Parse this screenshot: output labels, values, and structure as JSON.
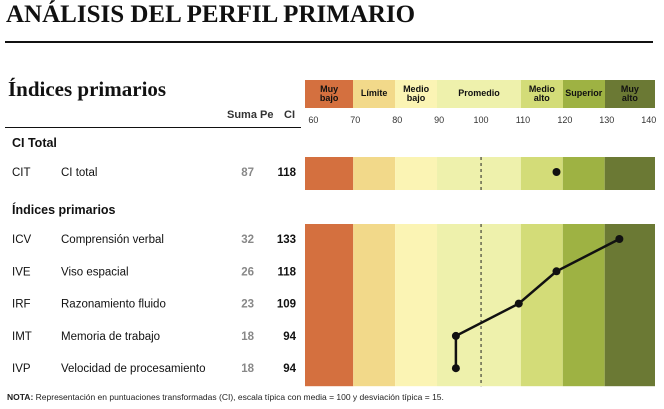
{
  "title": "ANÁLISIS DEL PERFIL PRIMARIO",
  "subtitle": "Índices primarios",
  "columns": {
    "sum": "Suma Pe",
    "ci": "CI"
  },
  "chart_data": {
    "type": "profile",
    "xlim": [
      58,
      141.5
    ],
    "xticks": [
      60,
      70,
      80,
      90,
      100,
      110,
      120,
      130,
      140
    ],
    "reference": 100,
    "bands": [
      {
        "label": "Muy bajo",
        "from": 58,
        "to": 69.5,
        "color": "#d4703f"
      },
      {
        "label": "Límite",
        "from": 69.5,
        "to": 79.5,
        "color": "#f2d98a"
      },
      {
        "label": "Medio bajo",
        "from": 79.5,
        "to": 89.5,
        "color": "#fbf4b4"
      },
      {
        "label": "Promedio",
        "from": 89.5,
        "to": 109.5,
        "color": "#eef1ac"
      },
      {
        "label": "Medio alto",
        "from": 109.5,
        "to": 119.5,
        "color": "#d3dc78"
      },
      {
        "label": "Superior",
        "from": 119.5,
        "to": 129.5,
        "color": "#9eb243"
      },
      {
        "label": "Muy alto",
        "from": 129.5,
        "to": 141.5,
        "color": "#6b7934"
      }
    ],
    "sections": [
      {
        "title": "CI Total",
        "rows": [
          {
            "code": "CIT",
            "name": "CI total",
            "sum": 87,
            "value": 118
          }
        ]
      },
      {
        "title": "Índices primarios",
        "rows": [
          {
            "code": "ICV",
            "name": "Comprensión verbal",
            "sum": 32,
            "value": 133
          },
          {
            "code": "IVE",
            "name": "Viso espacial",
            "sum": 26,
            "value": 118
          },
          {
            "code": "IRF",
            "name": "Razonamiento fluido",
            "sum": 23,
            "value": 109
          },
          {
            "code": "IMT",
            "name": "Memoria de trabajo",
            "sum": 18,
            "value": 94
          },
          {
            "code": "IVP",
            "name": "Velocidad de procesamiento",
            "sum": 18,
            "value": 94
          }
        ]
      }
    ]
  },
  "note": {
    "label": "NOTA:",
    "text": "Representación en puntuaciones transformadas (CI), escala típica con media = 100 y desviación típica = 15."
  }
}
